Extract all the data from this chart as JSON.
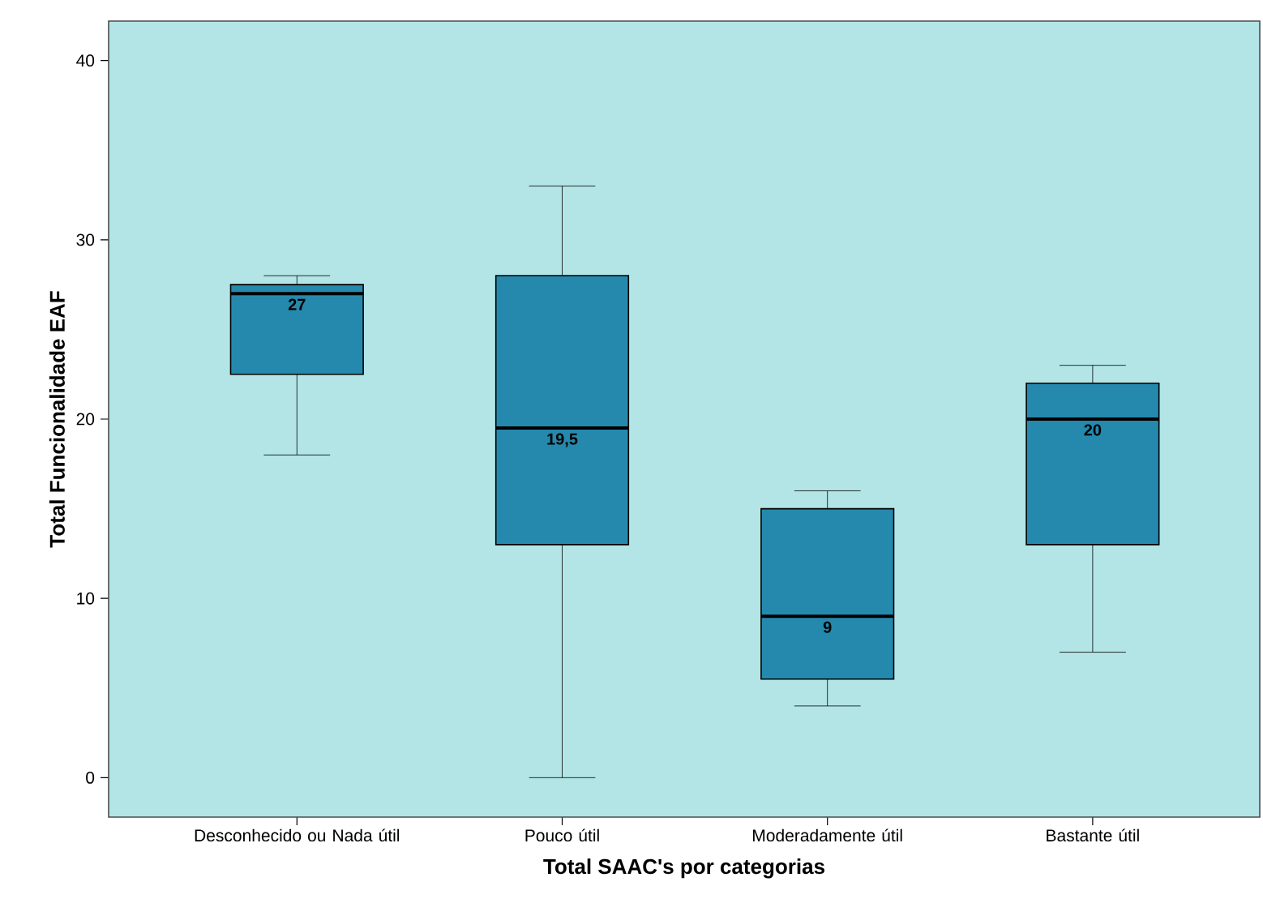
{
  "chart_data": {
    "type": "box",
    "xlabel": "Total SAAC's por categorias",
    "ylabel": "Total Funcionalidade EAF",
    "categories": [
      "Desconhecido ou Nada útil",
      "Pouco útil",
      "Moderadamente útil",
      "Bastante útil"
    ],
    "color": "#2589ad",
    "boxes": [
      {
        "low": 18,
        "q1": 22.5,
        "median": 27,
        "q3": 27.5,
        "high": 28
      },
      {
        "low": 0,
        "q1": 13,
        "median": 19.5,
        "q3": 28,
        "high": 33
      },
      {
        "low": 4,
        "q1": 5.5,
        "median": 9,
        "q3": 15,
        "high": 16
      },
      {
        "low": 7,
        "q1": 13,
        "median": 20,
        "q3": 22,
        "high": 23
      }
    ],
    "ylim": [
      -2.2,
      42.2
    ],
    "yticks": [
      0,
      10,
      20,
      30,
      40
    ],
    "annotations": [
      "27",
      "19,5",
      "9",
      "20"
    ]
  }
}
